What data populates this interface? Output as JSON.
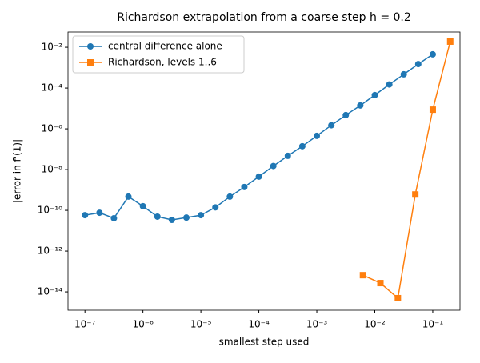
{
  "chart_data": {
    "type": "line",
    "title": "Richardson extrapolation from a coarse step h = 0.2",
    "x_label": "smallest step used",
    "y_label": "|error in f'(1)|",
    "x_scale": "log",
    "y_scale": "log",
    "xlim": [
      5.1e-08,
      0.295
    ],
    "ylim": [
      1.26e-15,
      0.056
    ],
    "xticks": [
      {
        "value": 1e-07,
        "label": "10⁻⁷"
      },
      {
        "value": 1e-06,
        "label": "10⁻⁶"
      },
      {
        "value": 1e-05,
        "label": "10⁻⁵"
      },
      {
        "value": 0.0001,
        "label": "10⁻⁴"
      },
      {
        "value": 0.001,
        "label": "10⁻³"
      },
      {
        "value": 0.01,
        "label": "10⁻²"
      },
      {
        "value": 0.1,
        "label": "10⁻¹"
      }
    ],
    "yticks": [
      {
        "value": 1e-14,
        "label": "10⁻¹⁴"
      },
      {
        "value": 1e-12,
        "label": "10⁻¹²"
      },
      {
        "value": 1e-10,
        "label": "10⁻¹⁰"
      },
      {
        "value": 1e-08,
        "label": "10⁻⁸"
      },
      {
        "value": 1e-06,
        "label": "10⁻⁶"
      },
      {
        "value": 0.0001,
        "label": "10⁻⁴"
      },
      {
        "value": 0.01,
        "label": "10⁻²"
      }
    ],
    "legend": "upper left",
    "series": [
      {
        "name": "central difference alone",
        "color": "#1f77b4",
        "marker": "circle",
        "x": [
          1e-07,
          1.78e-07,
          3.16e-07,
          5.62e-07,
          1e-06,
          1.78e-06,
          3.16e-06,
          5.62e-06,
          1e-05,
          1.78e-05,
          3.16e-05,
          5.62e-05,
          0.0001,
          0.000178,
          0.000316,
          0.000562,
          0.001,
          0.00178,
          0.00316,
          0.00562,
          0.01,
          0.0178,
          0.0316,
          0.0562,
          0.1
        ],
        "values": [
          5.8e-11,
          7.6e-11,
          4.1e-11,
          4.7e-10,
          1.6e-10,
          4.9e-11,
          3.4e-11,
          4.4e-11,
          5.8e-11,
          1.4e-10,
          4.7e-10,
          1.4e-09,
          4.5e-09,
          1.5e-08,
          4.7e-08,
          1.4e-07,
          4.5e-07,
          1.5e-06,
          4.7e-06,
          1.4e-05,
          4.5e-05,
          0.00015,
          0.00047,
          0.0015,
          0.0045
        ]
      },
      {
        "name": "Richardson, levels 1..6",
        "color": "#ff7f0e",
        "marker": "square",
        "x": [
          0.00625,
          0.0125,
          0.025,
          0.05,
          0.1,
          0.2
        ],
        "values": [
          6.6e-14,
          2.7e-14,
          4.9e-15,
          6e-10,
          8.7e-06,
          0.019
        ]
      }
    ]
  }
}
